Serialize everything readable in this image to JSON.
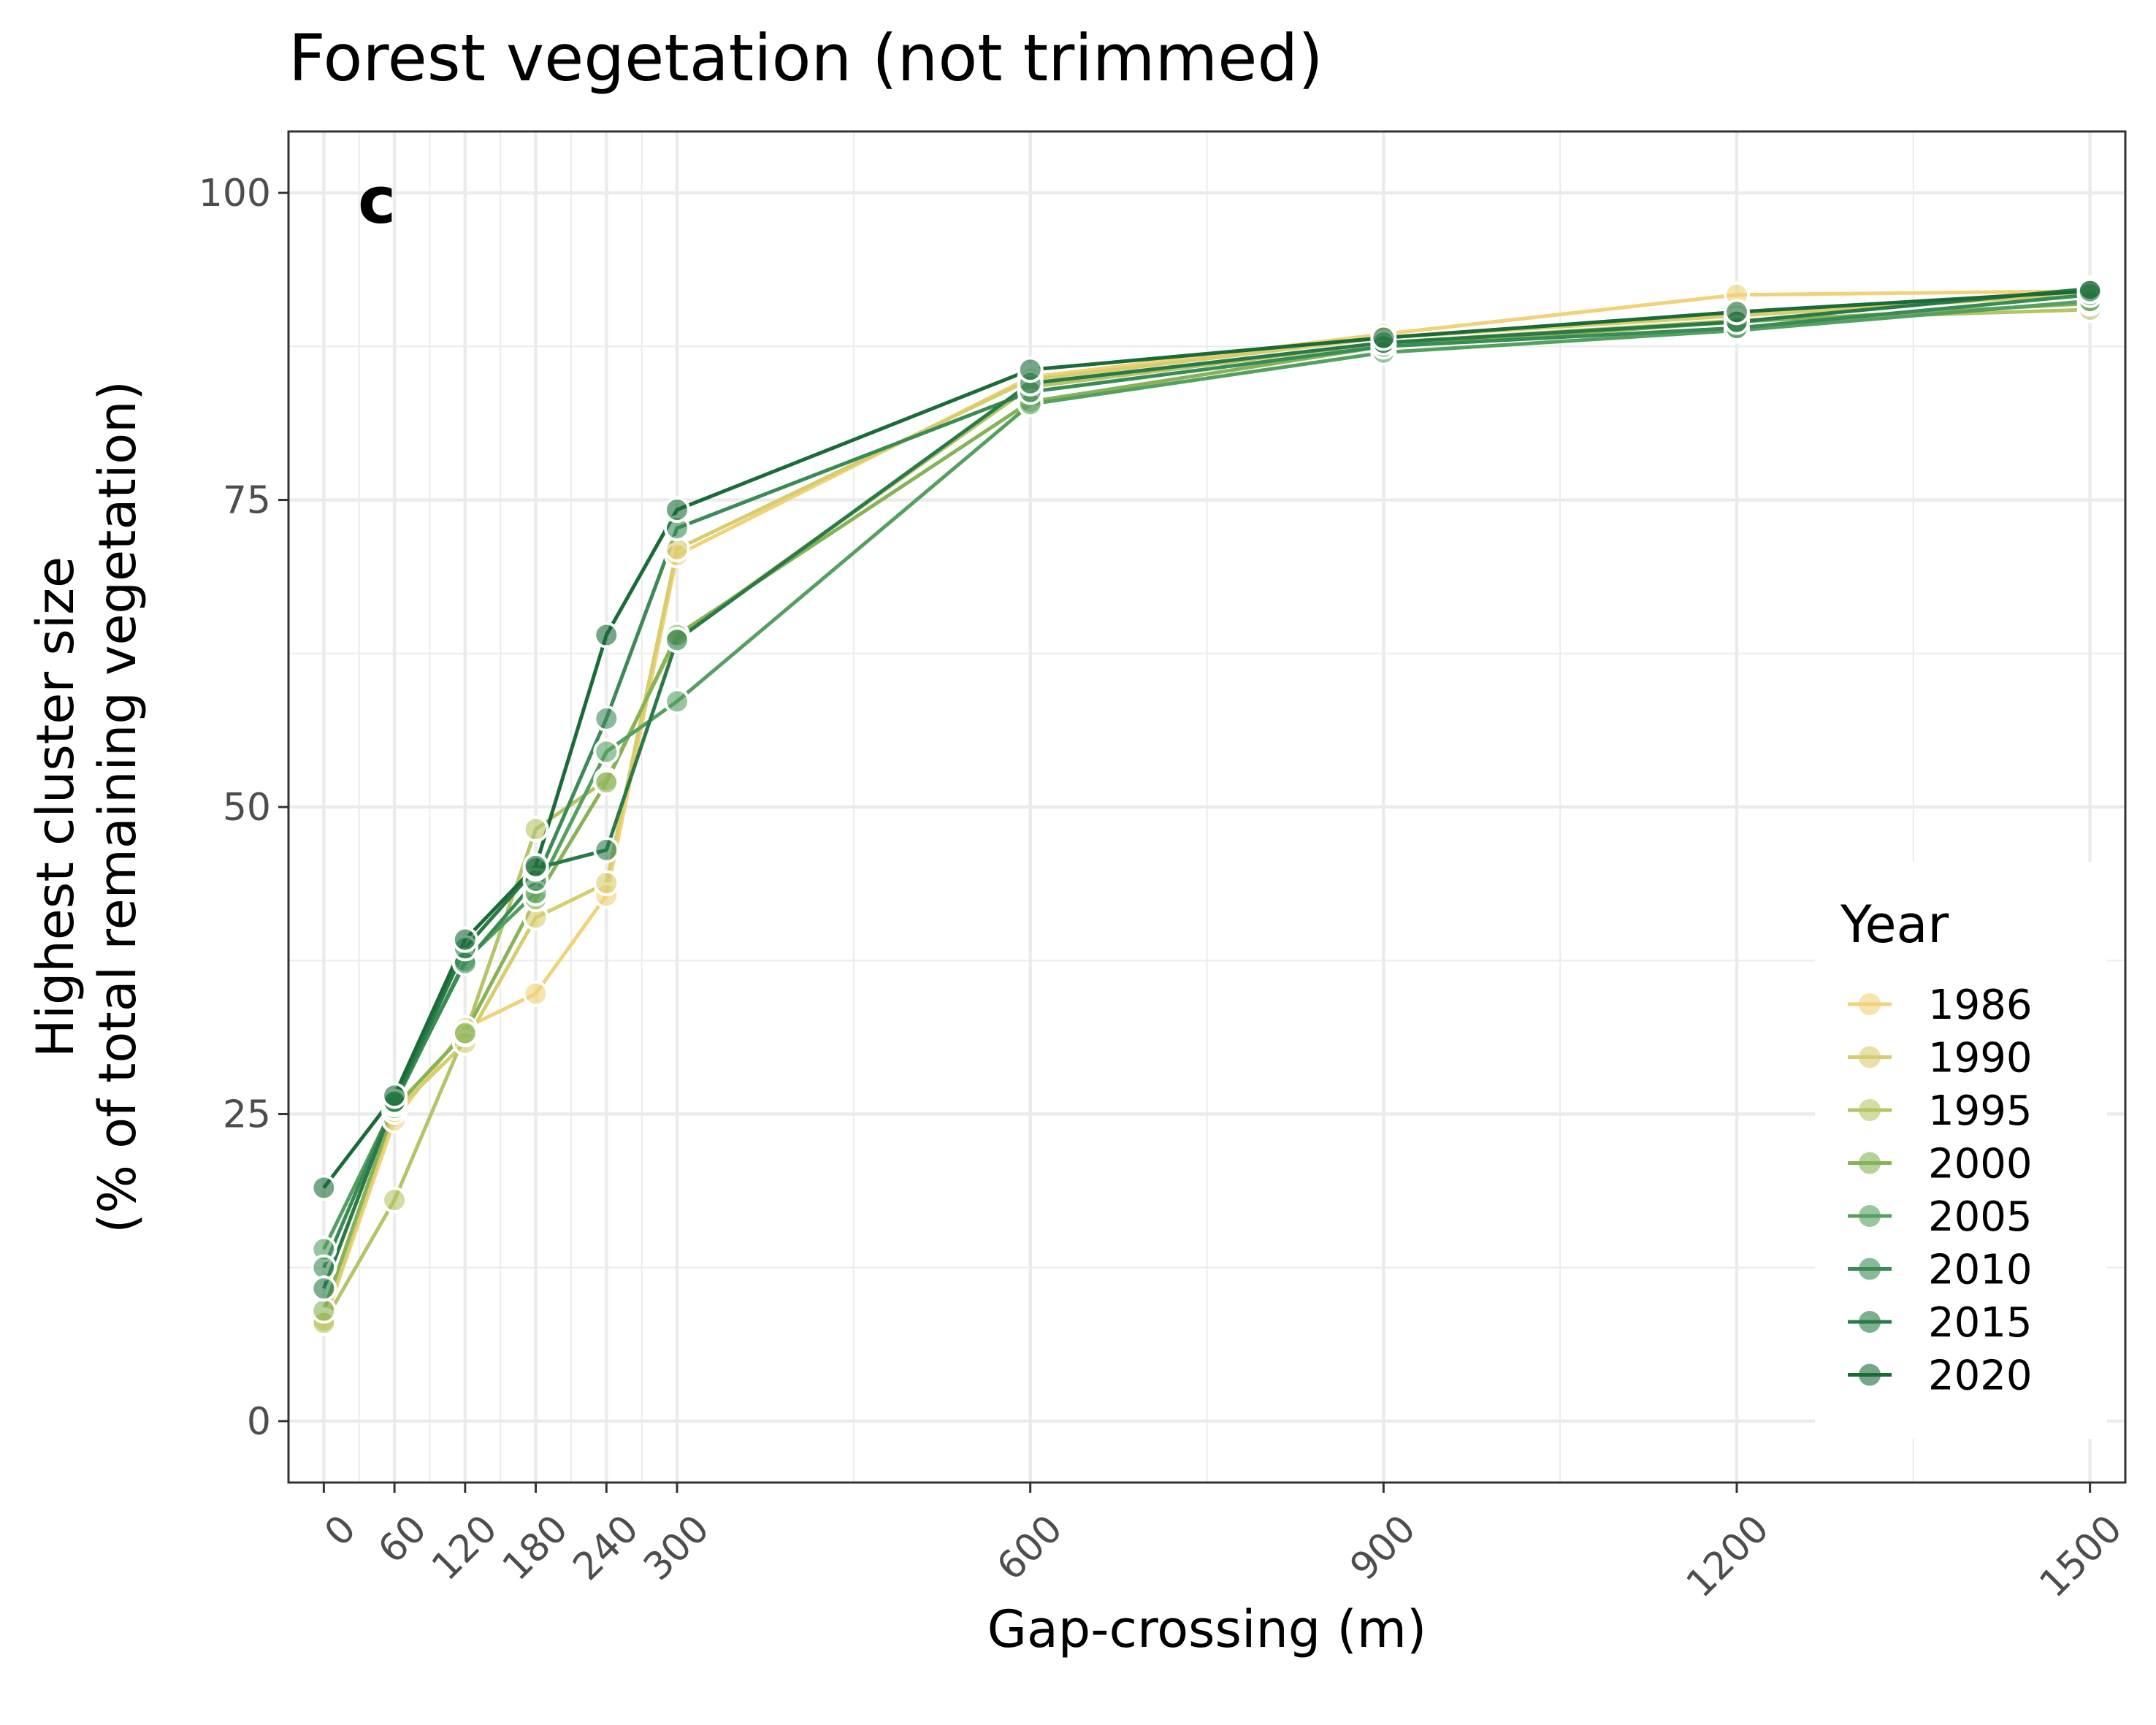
{
  "chart_data": {
    "type": "line",
    "title": "Forest vegetation (not trimmed)",
    "panel_label": "c",
    "xlabel": "Gap-crossing (m)",
    "ylabel_line1": "Highest cluster size",
    "ylabel_line2": "(% of total remaining vegetation)",
    "x": [
      0,
      60,
      120,
      180,
      240,
      300,
      600,
      900,
      1200,
      1500
    ],
    "x_ticks": [
      "0",
      "60",
      "120",
      "180",
      "240",
      "300",
      "600",
      "900",
      "1200",
      "1500"
    ],
    "y_ticks": [
      "0",
      "25",
      "50",
      "75",
      "100"
    ],
    "xlim": [
      -30,
      1530
    ],
    "ylim": [
      -5,
      105
    ],
    "grid": true,
    "legend_title": "Year",
    "legend_position": "right",
    "series": [
      {
        "name": "1986",
        "color": "#f0d27a",
        "values": [
          8.0,
          24.5,
          32.0,
          34.8,
          42.8,
          70.5,
          85.0,
          88.5,
          91.7,
          92.0
        ]
      },
      {
        "name": "1990",
        "color": "#d6cd6e",
        "values": [
          8.2,
          25.2,
          30.8,
          41.0,
          43.8,
          71.0,
          84.8,
          88.2,
          90.0,
          91.8
        ]
      },
      {
        "name": "1995",
        "color": "#b4c466",
        "values": [
          8.0,
          18.0,
          31.5,
          48.2,
          52.2,
          63.8,
          84.2,
          87.8,
          89.6,
          90.5
        ]
      },
      {
        "name": "2000",
        "color": "#86b258",
        "values": [
          9.0,
          25.5,
          31.6,
          42.5,
          52.0,
          64.0,
          83.0,
          87.5,
          89.5,
          91.0
        ]
      },
      {
        "name": "2005",
        "color": "#55a060",
        "values": [
          14.0,
          25.8,
          37.5,
          43.0,
          54.5,
          58.6,
          82.8,
          87.0,
          88.8,
          91.2
        ]
      },
      {
        "name": "2010",
        "color": "#3a8b55",
        "values": [
          12.5,
          26.0,
          37.3,
          44.0,
          57.2,
          72.7,
          83.8,
          87.5,
          89.0,
          91.7
        ]
      },
      {
        "name": "2015",
        "color": "#2a7a48",
        "values": [
          10.8,
          26.0,
          38.5,
          45.0,
          46.5,
          63.6,
          84.5,
          87.8,
          89.5,
          92.2
        ]
      },
      {
        "name": "2020",
        "color": "#196b37",
        "values": [
          19.0,
          26.5,
          39.2,
          45.2,
          64.0,
          74.2,
          85.6,
          88.2,
          90.3,
          92.0
        ]
      }
    ]
  }
}
